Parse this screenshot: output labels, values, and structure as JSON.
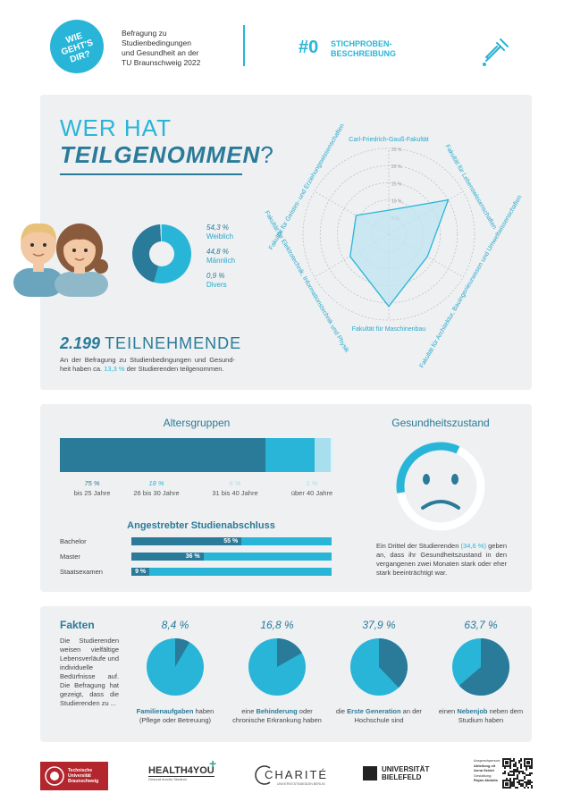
{
  "header": {
    "badge": [
      "WIE",
      "GEHT'S",
      "DIR?"
    ],
    "subtitle_lines": [
      "Befragung zu",
      "Studienbedingungen",
      "und Gesundheit an der",
      "TU Braunschweig 2022"
    ],
    "number": "#0",
    "section_lines": [
      "STICHPROBEN-",
      "BESCHREIBUNG"
    ]
  },
  "panel1": {
    "title_line1": "WER HAT",
    "title_line2": "TEILGENOMMEN",
    "title_qmark": "?",
    "gender": [
      {
        "value": "54,3 %",
        "label": "Weiblich",
        "fraction": 0.543
      },
      {
        "value": "44,8 %",
        "label": "Männlich",
        "fraction": 0.448
      },
      {
        "value": "0,9 %",
        "label": "Divers",
        "fraction": 0.009
      }
    ],
    "total_number": "2.199",
    "total_label": "TEILNEHMENDE",
    "total_desc_pre": "An der Befragung zu Studienbedingungen und Gesund-heit haben ca.",
    "total_desc_pct": "13,3 %",
    "total_desc_post": "der Studierenden teilgenommen."
  },
  "chart_data": {
    "type": "radar",
    "categories": [
      "Carl-Friedrich-Gauß-Fakultät",
      "Fakultät für Lebenswissenschaften",
      "Fakultät für Architektur, Bauingenieurwesen und Umweltwissenschaften",
      "Fakultät für Maschinenbau",
      "Fakultät für Elektrotechnik, Informationstechnik und Physik",
      "Fakultät für Geistes- und Erziehungswissenschaften"
    ],
    "values": [
      7,
      20,
      13,
      21,
      13,
      11
    ],
    "rlim": [
      0,
      25
    ],
    "ticks": [
      "5 %",
      "10 %",
      "15 %",
      "20 %",
      "25 %"
    ],
    "grid": true
  },
  "panel2": {
    "age_title": "Altersgruppen",
    "age": [
      {
        "pct": "75 %",
        "label": "bis 25 Jahre",
        "value": 75,
        "color": "#2a7a99"
      },
      {
        "pct": "18 %",
        "label": "26 bis 30 Jahre",
        "value": 18,
        "color": "#29b5d8"
      },
      {
        "pct": "6 %",
        "label": "31 bis 40 Jahre",
        "value": 6,
        "color": "#a8dfee"
      },
      {
        "pct": "1 %",
        "label": "über 40 Jahre",
        "value": 1,
        "color": "#dff2f8"
      }
    ],
    "degree_title": "Angestrebter Studienabschluss",
    "degrees": [
      {
        "label": "Bachelor",
        "pct": "55 %",
        "value": 55
      },
      {
        "label": "Master",
        "pct": "36 %",
        "value": 36
      },
      {
        "label": "Staatsexamen",
        "pct": "9 %",
        "value": 9
      }
    ],
    "health_title": "Gesundheitszustand",
    "health_text_pre": "Ein Drittel der Studierenden",
    "health_pct": "(34,6 %)",
    "health_text_post": "geben an, dass ihr Gesundheitszustand in den vergangenen zwei Monaten stark oder eher stark beeinträchtigt war.",
    "health_fraction": 0.346
  },
  "panel3": {
    "facts_title": "Fakten",
    "facts_text": "Die Studierenden weisen vielfältige Lebensverläufe und individuelle Bedürfnisse auf. Die Befragung hat gezeigt, dass die Studierenden zu ...",
    "pies": [
      {
        "pct": "8,4 %",
        "value": 8.4,
        "pre": "",
        "highlight": "Familienaufgaben",
        "post": "haben (Pflege oder Betreuung)"
      },
      {
        "pct": "16,8 %",
        "value": 16.8,
        "pre": "eine",
        "highlight": "Behinderung",
        "post": "oder chronische Erkrankung haben"
      },
      {
        "pct": "37,9 %",
        "value": 37.9,
        "pre": "die",
        "highlight": "Erste Generation",
        "post": "an der Hochschule sind"
      },
      {
        "pct": "63,7 %",
        "value": 63.7,
        "pre": "einen",
        "highlight": "Nebenjob",
        "post": "neben dem Studium haben"
      }
    ]
  },
  "footer": {
    "tu_lines": [
      "Technische",
      "Universität",
      "Braunschweig"
    ],
    "health4you": "HEALTH4YOU",
    "health4you_sub": "Gesund durchs Studium",
    "charite": "CHARITÉ",
    "charite_sub": "UNIVERSITÄTSMEDIZIN BERLIN",
    "bielefeld_lines": [
      "UNIVERSITÄT",
      "BIELEFELD"
    ],
    "contact_lines": [
      "Ansprechperson:",
      "Abteilung xit",
      "Anna Seidel",
      "Gestaltung:",
      "Rojan Abdulla"
    ]
  },
  "colors": {
    "dark": "#2a7a99",
    "light": "#29b5d8",
    "panel": "#eef0f2",
    "pale": "#a8dfee"
  }
}
